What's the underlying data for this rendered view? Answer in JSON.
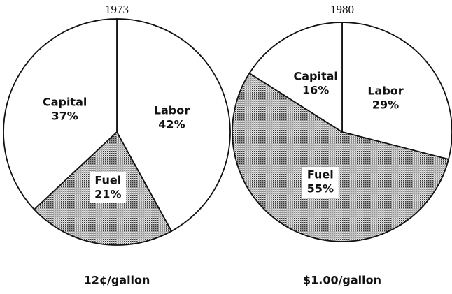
{
  "chart_data": [
    {
      "type": "pie",
      "title": "1973",
      "note": "12¢/gallon",
      "categories": [
        "Labor",
        "Fuel",
        "Capital"
      ],
      "values": [
        42,
        21,
        37
      ],
      "value_labels": [
        "42%",
        "21%",
        "37%"
      ],
      "colors": [
        "#ffffff",
        "#8c8c8c",
        "#ffffff"
      ]
    },
    {
      "type": "pie",
      "title": "1980",
      "note": "$1.00/gallon",
      "categories": [
        "Labor",
        "Fuel",
        "Capital"
      ],
      "values": [
        29,
        55,
        16
      ],
      "value_labels": [
        "29%",
        "55%",
        "16%"
      ],
      "colors": [
        "#ffffff",
        "#8c8c8c",
        "#ffffff"
      ]
    }
  ]
}
